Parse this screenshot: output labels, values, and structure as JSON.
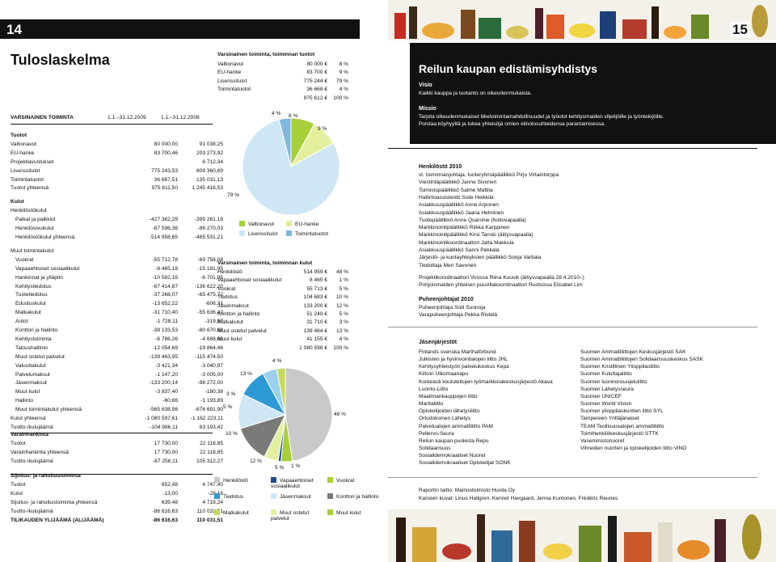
{
  "left": {
    "page_number": "14",
    "title": "Tuloslaskelma",
    "header": {
      "section": "VARSINAINEN TOIMINTA",
      "col1": "1.1.–31.12.2009",
      "col2": "1.1.–31.12.2008"
    },
    "rows": [
      {
        "label": "Tuotot",
        "v1": "",
        "v2": "",
        "style": "b"
      },
      {
        "label": "Valtionavut",
        "v1": "80 000,00",
        "v2": "91 038,25"
      },
      {
        "label": "EU-hanke",
        "v1": "83 700,46",
        "v2": "203 273,92"
      },
      {
        "label": "Projektiavustukset",
        "v1": "",
        "v2": "6 712,34"
      },
      {
        "label": "Lisenssitulot",
        "v1": "775 243,53",
        "v2": "809 360,89"
      },
      {
        "label": "Toimintatuotot",
        "v1": "36 667,51",
        "v2": "135 031,13"
      },
      {
        "label": "Tuotot yhteensä",
        "v1": "975 611,50",
        "v2": "1 245 416,53"
      },
      {
        "label": "",
        "v1": "",
        "v2": "",
        "style": "gap"
      },
      {
        "label": "Kulut",
        "v1": "",
        "v2": "",
        "style": "b"
      },
      {
        "label": "Henkilöstökulut",
        "v1": "",
        "v2": ""
      },
      {
        "label": "Palkat ja palkkiot",
        "v1": "-427 362,29",
        "v2": "-399 261,18",
        "style": "ind"
      },
      {
        "label": "Henkilösivukulut",
        "v1": "-87 596,36",
        "v2": "-86 270,03",
        "style": "ind"
      },
      {
        "label": "Henkilöstökulut yhteensä",
        "v1": "-514 958,65",
        "v2": "-485 531,21",
        "style": "ind"
      },
      {
        "label": "",
        "v1": "",
        "v2": "",
        "style": "gap"
      },
      {
        "label": "Muut toimintakulut",
        "v1": "",
        "v2": ""
      },
      {
        "label": "Vuokrat",
        "v1": "-55 712,78",
        "v2": "-69 758,08",
        "style": "ind"
      },
      {
        "label": "Vapaaehtoiset sosiaalikulut",
        "v1": "-8 465,18",
        "v2": "-15 181,95",
        "style": "ind"
      },
      {
        "label": "Hankinnat ja ylläpito",
        "v1": "-10 582,16",
        "v2": "-6 701,95",
        "style": "ind"
      },
      {
        "label": "Kehitystiedotus",
        "v1": "-67 414,87",
        "v2": "-136 622,20",
        "style": "ind"
      },
      {
        "label": "Tuotetiedotus",
        "v1": "-37 268,07",
        "v2": "-65 475,72",
        "style": "ind"
      },
      {
        "label": "Edustuskulut",
        "v1": "-13 652,22",
        "v2": "-606,31",
        "style": "ind"
      },
      {
        "label": "Matkakulut",
        "v1": "-31 710,40",
        "v2": "-55 636,42",
        "style": "ind"
      },
      {
        "label": "Autot",
        "v1": "-1 728,11",
        "v2": "-319,97",
        "style": "ind"
      },
      {
        "label": "Konttori ja hallinto",
        "v1": "-39 133,53",
        "v2": "-80 670,08",
        "style": "ind"
      },
      {
        "label": "Kehitystoiminta",
        "v1": "-6 786,26",
        "v2": "-4 688,02",
        "style": "ind"
      },
      {
        "label": "Taloushallinto",
        "v1": "-12 054,69",
        "v2": "-19 864,46",
        "style": "ind"
      },
      {
        "label": "Muut ostetut palvelut",
        "v1": "-139 463,95",
        "v2": "-115 474,50",
        "style": "ind"
      },
      {
        "label": "Valuuttakulut",
        "v1": "-3 421,34",
        "v2": "-3 040,97",
        "style": "ind"
      },
      {
        "label": "Palvelumaksut",
        "v1": "-1 147,20",
        "v2": "-3 005,00",
        "style": "ind"
      },
      {
        "label": "Jäsenmaksut",
        "v1": "-133 200,14",
        "v2": "-98 272,00",
        "style": "ind"
      },
      {
        "label": "Muut kulut",
        "v1": "-3 837,40",
        "v2": "-180,38",
        "style": "ind"
      },
      {
        "label": "Hallinto",
        "v1": "-60,66",
        "v2": "-1 193,89",
        "style": "ind"
      },
      {
        "label": "Muut toimintakulut yhteensä",
        "v1": "-565 638,96",
        "v2": "-676 691,90",
        "style": "ind"
      },
      {
        "label": "Kulut yhteensä",
        "v1": "-1 080 597,61",
        "v2": "-1 162 223,11"
      },
      {
        "label": "Tuotto-/kulujäämä",
        "v1": "-104 986,11",
        "v2": "83 193,42"
      }
    ],
    "varainhankinta": [
      {
        "label": "Varainhankinta",
        "v1": "",
        "v2": "",
        "style": "b"
      },
      {
        "label": "Tuotot",
        "v1": "17 730,00",
        "v2": "22 118,85"
      },
      {
        "label": "Varainhankinta yhteensä",
        "v1": "17 730,00",
        "v2": "22 118,85"
      },
      {
        "label": "Tuotto-/kulujäämä",
        "v1": "-87 256,11",
        "v2": "105 312,27"
      }
    ],
    "sijoitus": [
      {
        "label": "Sijoitus- ja rahoitustoiminta",
        "v1": "",
        "v2": "",
        "style": "b"
      },
      {
        "label": "Tuotot",
        "v1": "652,48",
        "v2": "4 747,40"
      },
      {
        "label": "Kulut",
        "v1": "-13,00",
        "v2": "-28,16"
      },
      {
        "label": "Sijoitus- ja rahoitustoiminta yhteensä",
        "v1": "639,48",
        "v2": "4 719,24"
      },
      {
        "label": "Tuotto-/kulujäämä",
        "v1": "-86 616,63",
        "v2": "110 031,51"
      },
      {
        "label": "TILIKAUDEN YLIJÄÄMÄ (ALIJÄÄMÄ)",
        "v1": "-86 616,63",
        "v2": "110 031,51",
        "style": "b"
      }
    ],
    "income_table": {
      "title": "Varsinainen toiminta, toiminnan tuotot",
      "rows": [
        {
          "label": "Valtionavut",
          "amount": "80 000 €",
          "pct": "8 %"
        },
        {
          "label": "EU-hanke",
          "amount": "83 700 €",
          "pct": "9 %"
        },
        {
          "label": "Lisenssitulot",
          "amount": "775 244 €",
          "pct": "79 %"
        },
        {
          "label": "Toimintatuotot",
          "amount": "36 668 €",
          "pct": "4 %"
        },
        {
          "label": "",
          "amount": "975 612 €",
          "pct": "100 %"
        }
      ]
    },
    "expense_table": {
      "title": "Varsinainen toiminta, toiminnan kulut",
      "rows": [
        {
          "label": "Henkilöstö",
          "amount": "514 959 €",
          "pct": "48 %"
        },
        {
          "label": "Vapaaehtoiset sosiaalikulut",
          "amount": "8 465 €",
          "pct": "1 %"
        },
        {
          "label": "Vuokrat",
          "amount": "55 713 €",
          "pct": "5 %"
        },
        {
          "label": "Tiedotus",
          "amount": "104 683 €",
          "pct": "10 %"
        },
        {
          "label": "Jäsenmaksut",
          "amount": "133 200 €",
          "pct": "12 %"
        },
        {
          "label": "Konttori ja hallinto",
          "amount": "51 249 €",
          "pct": "5 %"
        },
        {
          "label": "Matkakulut",
          "amount": "31 710 €",
          "pct": "3 %"
        },
        {
          "label": "Muut ostetut palvelut",
          "amount": "139 464 €",
          "pct": "13 %"
        },
        {
          "label": "Muut kulut",
          "amount": "41 155 €",
          "pct": "4 %"
        },
        {
          "label": "",
          "amount": "1 080 598 €",
          "pct": "100 %"
        }
      ]
    },
    "income_pie": {
      "slices": [
        {
          "name": "Toimintatuotot",
          "value": 4,
          "label": "4 %",
          "color": "#7fb8dc"
        },
        {
          "name": "Valtionavut",
          "value": 8,
          "label": "8 %",
          "color": "#a7cf3a"
        },
        {
          "name": "EU-hanke",
          "value": 9,
          "label": "9 %",
          "color": "#e4ef9e"
        },
        {
          "name": "Lisenssitulot",
          "value": 79,
          "label": "79 %",
          "color": "#cfe6f5"
        }
      ],
      "legend": [
        {
          "name": "Valtionavut",
          "color": "#a7cf3a"
        },
        {
          "name": "EU-hanke",
          "color": "#e4ef9e"
        },
        {
          "name": "Lisenssitulot",
          "color": "#cfe6f5"
        },
        {
          "name": "Toimintatuotot",
          "color": "#7fb8dc"
        }
      ]
    },
    "expense_pie": {
      "slices": [
        {
          "name": "Henkilöstö",
          "value": 48,
          "label": "48 %",
          "color": "#c9c9c9"
        },
        {
          "name": "Muut kulut",
          "value": 4,
          "label": "4 %",
          "color": "#a7cf3a"
        },
        {
          "name": "Vapaaehtoiset sosiaalikulut",
          "value": 1,
          "label": "1 %",
          "color": "#1d4f8c"
        },
        {
          "name": "Konttori ja hallinto",
          "value": 5,
          "label": "5 %",
          "color": "#e4ef9e"
        },
        {
          "name": "Muut ostetut palvelut",
          "value": 13,
          "label": "13 %",
          "color": "#7a7a7a"
        },
        {
          "name": "Jäsenmaksut",
          "value": 12,
          "label": "12 %",
          "color": "#cfe6f5"
        },
        {
          "name": "Tiedotus",
          "value": 10,
          "label": "10 %",
          "color": "#2d9ad6"
        },
        {
          "name": "Vuokrat",
          "value": 5,
          "label": "5 %",
          "color": "#9bd1ec"
        },
        {
          "name": "Matkakulut",
          "value": 3,
          "label": "3 %",
          "color": "#c7d85b"
        }
      ],
      "legend": [
        {
          "name": "Henkilöstö",
          "color": "#c9c9c9"
        },
        {
          "name": "Vapaaehtoiset sosiaalikulut",
          "color": "#1d4f8c"
        },
        {
          "name": "Vuokrat",
          "color": "#a7cf3a"
        },
        {
          "name": "Tiedotus",
          "color": "#2d9ad6"
        },
        {
          "name": "Jäsenmaksut",
          "color": "#cfe6f5"
        },
        {
          "name": "Konttori ja hallinto",
          "color": "#7a7a7a"
        },
        {
          "name": "Matkakulut",
          "color": "#c7d85b"
        },
        {
          "name": "Muut ostetut palvelut",
          "color": "#e4ef9e"
        },
        {
          "name": "Muut kulut",
          "color": "#a7cf3a"
        }
      ]
    }
  },
  "right": {
    "page_number": "15",
    "title": "Reilun kaupan edistämisyhdistys",
    "visio_h": "Visio",
    "visio_t": "Kaikki kauppa ja tuotanto on oikeudenmukaista.",
    "missio_h": "Missio",
    "missio_t1": "Tarjota oikeudenmukaiset liiketoimintamahdollisuudet ja työolot kehitysmaiden viljelijöille ja työntekijöille.",
    "missio_t2": "Poistaa köyhyyttä ja tukea yhteisöjä omien elinolosuhteidensa parantamisessa.",
    "henk_h": "Henkilöstö 2010",
    "henk": [
      "vt. toiminnanjohtaja, tuoteryhmäpäällikkö Pirjo Virtaintorppa",
      "Viestintäpäällikkö Janne Sivonen",
      "Toimistopäällikkö Salme Mattila",
      "Hallintoassistentti Soile Heikkilä",
      "Asiakkuuspäällikkö Anne Arponen",
      "Asiakkuuspäällikkö Jaana Helminen",
      "Tuotepäällikkö Anne Quarshie (hoitovapaalla)",
      "Markkinointipäällikkö Riikka Karppinen",
      "Markkinointipäällikkö Kirsi Tanski (äitiysvapaalla)",
      "Markkinointikoordinaattori Jatta Makkula",
      "Asiakkuuspäällikkö Sanni Pekkala",
      "Järjestö- ja kuntayhteyksien päällikkö Sonja Vartiala",
      "Tiedottaja Meri Savonen"
    ],
    "henk2": [
      "Projektikoordinaattori Virossa Riina Kuusik (äitiysvapaalla 28.4.2010–)",
      "Pohjoismaiden yhteinen puuvillakoordinaattori Ruotsissa Elisabet Lim"
    ],
    "pj_h": "Puheenjohtajat 2010",
    "pj": [
      "Puheenjohtaja Soili Suonoja",
      "Varapuheenjohtaja Pekka Ristelä"
    ],
    "jas_h": "Jäsenjärjestöt",
    "jas1": [
      "Finlands svenska Marthaförbund",
      "Julkisten ja hyvinvointialojen liitto JHL",
      "Kehitysyhteistyön palvelukeskus Kepa",
      "Kirkon Ulkomaanapu",
      "Korkeasti koulutettujen työmarkkinakeskusjärjestö Akava",
      "Luonto-Liitto",
      "Maailmankauppojen liitto",
      "Marttaliitto",
      "Opiskelijoiden lähetysliitto",
      "Ortodoksinen Lähetys",
      "Palvelualojen ammattiliitto PAM",
      "Pellervo-Seura",
      "Reilun kaupan puolesta Repu",
      "Solidaarisuus",
      "Sosialidemokraatiset Nuoret",
      "Sosialidemokraatiset Opiskelijat SONK"
    ],
    "jas2": [
      "Suomen Ammattiliittojen Keskusjärjestö SAK",
      "Suomen Ammattiliittojen Solidaarisuuskeskus SASK",
      "Suomen Kristillinen Ylioppilasliitto",
      "Suomen Kuluttajaliitto",
      "Suomen luonnonsuojeluliitto",
      "Suomen Lähetysseura",
      "Suomen UNICEF",
      "Suomen World Vision",
      "Suomen ylioppilaskuntien liitto SYL",
      "Tampereen Yrittäjänaiset",
      "TEAM Teollisuusalojen ammattiliitto",
      "Toimihenkilökeskusjärjestö STTK",
      "Vasemmistonuoret",
      "Vihreiden nuorten ja opiskelijoiden liitto ViNO"
    ],
    "credits": [
      "Raportin taitto: Mainostoimisto Huvila Oy",
      "Kansien kuvat: Linus Hallgren, Kennet Havgaard, Jenna Kuntonen, Frédéric Reunes"
    ]
  }
}
